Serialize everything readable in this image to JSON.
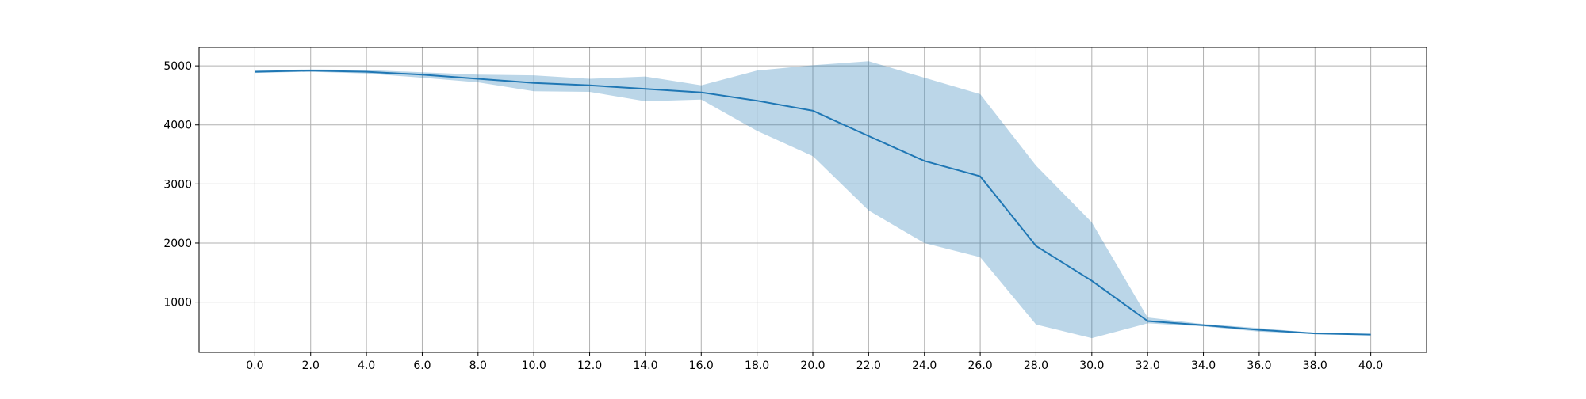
{
  "chart_data": {
    "type": "line",
    "x": [
      0,
      2,
      4,
      6,
      8,
      10,
      12,
      14,
      16,
      18,
      20,
      22,
      24,
      26,
      28,
      30,
      32,
      34,
      36,
      38,
      40
    ],
    "x_tick_labels": [
      "0.0",
      "2.0",
      "4.0",
      "6.0",
      "8.0",
      "10.0",
      "12.0",
      "14.0",
      "16.0",
      "18.0",
      "20.0",
      "22.0",
      "24.0",
      "26.0",
      "28.0",
      "30.0",
      "32.0",
      "34.0",
      "36.0",
      "38.0",
      "40.0"
    ],
    "y_ticks": [
      1000,
      2000,
      3000,
      4000,
      5000
    ],
    "y_tick_labels": [
      "1000",
      "2000",
      "3000",
      "4000",
      "5000"
    ],
    "xlim": [
      -2,
      42
    ],
    "ylim": [
      150,
      5310
    ],
    "grid": true,
    "series": [
      {
        "values": [
          4900,
          4920,
          4900,
          4850,
          4780,
          4710,
          4670,
          4610,
          4550,
          4410,
          4240,
          3810,
          3390,
          3130,
          1950,
          1360,
          680,
          610,
          530,
          470,
          450
        ],
        "band_upper": [
          4920,
          4940,
          4930,
          4890,
          4850,
          4840,
          4780,
          4820,
          4670,
          4920,
          5010,
          5080,
          4800,
          4520,
          3310,
          2350,
          740,
          630,
          560,
          480,
          455
        ],
        "band_lower": [
          4880,
          4900,
          4870,
          4800,
          4720,
          4570,
          4560,
          4400,
          4430,
          3900,
          3470,
          2550,
          2000,
          1760,
          620,
          390,
          640,
          590,
          500,
          460,
          445
        ],
        "color": "#1f77b4",
        "band_color": "#1f77b4",
        "band_opacity": 0.3
      }
    ]
  }
}
